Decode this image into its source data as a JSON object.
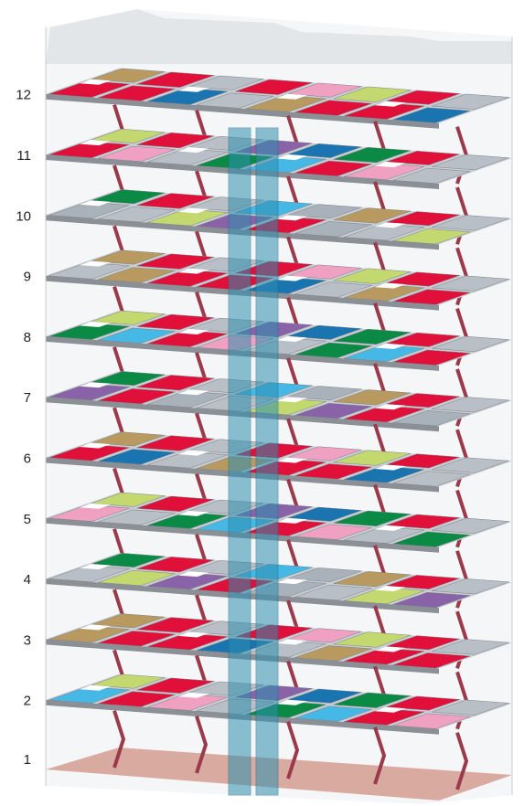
{
  "floors": [
    "1",
    "2",
    "3",
    "4",
    "5",
    "6",
    "7",
    "8",
    "9",
    "10",
    "11",
    "12"
  ]
}
